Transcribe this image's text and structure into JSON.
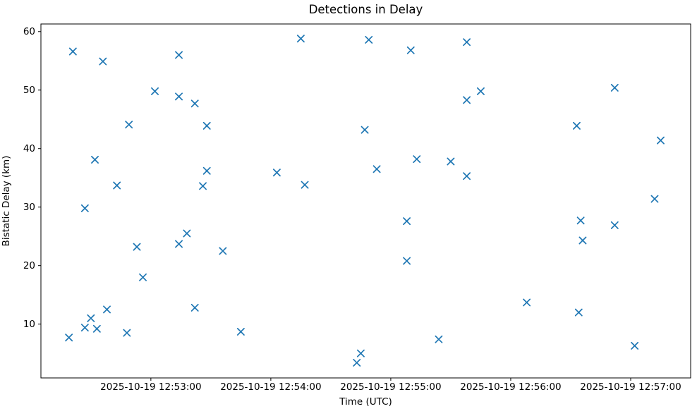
{
  "figure": {
    "title": "Detections in Delay",
    "xlabel": "Time (UTC)",
    "ylabel": "Bistatic Delay (km)"
  },
  "chart_data": {
    "type": "scatter",
    "title": "Detections in Delay",
    "xlabel": "Time (UTC)",
    "ylabel": "Bistatic Delay (km)",
    "marker": "x",
    "marker_color": "#1f77b4",
    "axis_color": "#000000",
    "grid": false,
    "legend": false,
    "date_utc": "2025-10-19",
    "x_tick_labels": [
      "2025-10-19 12:53:00",
      "2025-10-19 12:54:00",
      "2025-10-19 12:55:00",
      "2025-10-19 12:56:00",
      "2025-10-19 12:57:00"
    ],
    "y_tick_labels": [
      "10",
      "20",
      "30",
      "40",
      "50",
      "60"
    ],
    "y_ticks": [
      10,
      20,
      30,
      40,
      50,
      60
    ],
    "x_axis_range_utc": [
      "12:52:05",
      "12:57:30"
    ],
    "y_axis_range": [
      0.8,
      61.3
    ],
    "points": [
      {
        "time_utc": "12:52:19",
        "delay_km": 7.7
      },
      {
        "time_utc": "12:52:21",
        "delay_km": 56.6
      },
      {
        "time_utc": "12:52:27",
        "delay_km": 29.8
      },
      {
        "time_utc": "12:52:27",
        "delay_km": 9.4
      },
      {
        "time_utc": "12:52:30",
        "delay_km": 11.0
      },
      {
        "time_utc": "12:52:32",
        "delay_km": 38.1
      },
      {
        "time_utc": "12:52:33",
        "delay_km": 9.2
      },
      {
        "time_utc": "12:52:36",
        "delay_km": 54.9
      },
      {
        "time_utc": "12:52:38",
        "delay_km": 12.5
      },
      {
        "time_utc": "12:52:43",
        "delay_km": 33.7
      },
      {
        "time_utc": "12:52:48",
        "delay_km": 8.5
      },
      {
        "time_utc": "12:52:49",
        "delay_km": 44.1
      },
      {
        "time_utc": "12:52:53",
        "delay_km": 23.2
      },
      {
        "time_utc": "12:52:56",
        "delay_km": 18.0
      },
      {
        "time_utc": "12:53:02",
        "delay_km": 49.8
      },
      {
        "time_utc": "12:53:14",
        "delay_km": 56.0
      },
      {
        "time_utc": "12:53:14",
        "delay_km": 48.9
      },
      {
        "time_utc": "12:53:14",
        "delay_km": 23.7
      },
      {
        "time_utc": "12:53:18",
        "delay_km": 25.5
      },
      {
        "time_utc": "12:53:22",
        "delay_km": 47.7
      },
      {
        "time_utc": "12:53:22",
        "delay_km": 12.8
      },
      {
        "time_utc": "12:53:26",
        "delay_km": 33.6
      },
      {
        "time_utc": "12:53:28",
        "delay_km": 43.9
      },
      {
        "time_utc": "12:53:28",
        "delay_km": 36.2
      },
      {
        "time_utc": "12:53:36",
        "delay_km": 22.5
      },
      {
        "time_utc": "12:53:45",
        "delay_km": 8.7
      },
      {
        "time_utc": "12:54:03",
        "delay_km": 35.9
      },
      {
        "time_utc": "12:54:15",
        "delay_km": 58.8
      },
      {
        "time_utc": "12:54:17",
        "delay_km": 33.8
      },
      {
        "time_utc": "12:54:43",
        "delay_km": 3.4
      },
      {
        "time_utc": "12:54:45",
        "delay_km": 5.0
      },
      {
        "time_utc": "12:54:47",
        "delay_km": 43.2
      },
      {
        "time_utc": "12:54:49",
        "delay_km": 58.6
      },
      {
        "time_utc": "12:54:53",
        "delay_km": 36.5
      },
      {
        "time_utc": "12:55:08",
        "delay_km": 27.6
      },
      {
        "time_utc": "12:55:08",
        "delay_km": 20.8
      },
      {
        "time_utc": "12:55:10",
        "delay_km": 56.8
      },
      {
        "time_utc": "12:55:13",
        "delay_km": 38.2
      },
      {
        "time_utc": "12:55:24",
        "delay_km": 7.4
      },
      {
        "time_utc": "12:55:30",
        "delay_km": 37.8
      },
      {
        "time_utc": "12:55:38",
        "delay_km": 58.2
      },
      {
        "time_utc": "12:55:38",
        "delay_km": 48.3
      },
      {
        "time_utc": "12:55:38",
        "delay_km": 35.3
      },
      {
        "time_utc": "12:55:45",
        "delay_km": 49.8
      },
      {
        "time_utc": "12:56:08",
        "delay_km": 13.7
      },
      {
        "time_utc": "12:56:33",
        "delay_km": 43.9
      },
      {
        "time_utc": "12:56:34",
        "delay_km": 12.0
      },
      {
        "time_utc": "12:56:35",
        "delay_km": 27.7
      },
      {
        "time_utc": "12:56:36",
        "delay_km": 24.3
      },
      {
        "time_utc": "12:56:52",
        "delay_km": 50.4
      },
      {
        "time_utc": "12:56:52",
        "delay_km": 26.9
      },
      {
        "time_utc": "12:57:02",
        "delay_km": 6.3
      },
      {
        "time_utc": "12:57:12",
        "delay_km": 31.4
      },
      {
        "time_utc": "12:57:15",
        "delay_km": 41.4
      }
    ]
  }
}
